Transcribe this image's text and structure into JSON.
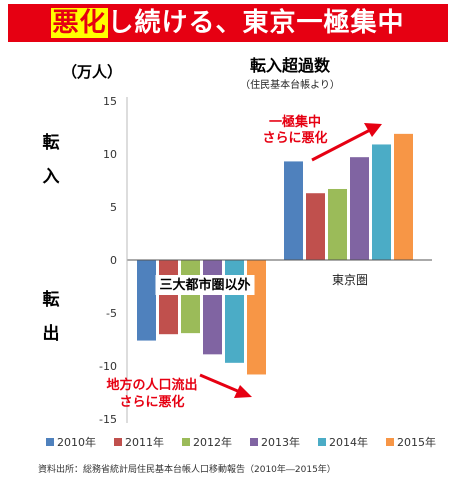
{
  "banner": {
    "highlight": "悪化",
    "rest": "し続ける、東京一極集中",
    "background": "#e60012",
    "highlight_color": "#ffff00"
  },
  "chart_data": {
    "type": "bar",
    "title": "転入超過数",
    "subtitle": "（住民基本台帳より）",
    "unit_label": "（万人）",
    "ylim": [
      -15,
      15
    ],
    "yticks": [
      15,
      10,
      5,
      0,
      -5,
      -10,
      -15
    ],
    "grid": false,
    "side_labels": {
      "in": [
        "転",
        "入"
      ],
      "out": [
        "転",
        "出"
      ]
    },
    "groups": [
      {
        "label": "三大都市圏以外",
        "values": [
          -7.6,
          -7.0,
          -6.9,
          -8.9,
          -9.7,
          -10.8
        ]
      },
      {
        "label": "東京圏",
        "values": [
          9.3,
          6.3,
          6.7,
          9.7,
          10.9,
          11.9
        ]
      }
    ],
    "series": [
      {
        "name": "2010年",
        "color": "#4f81bd"
      },
      {
        "name": "2011年",
        "color": "#c0504d"
      },
      {
        "name": "2012年",
        "color": "#9bbb59"
      },
      {
        "name": "2013年",
        "color": "#8064a2"
      },
      {
        "name": "2014年",
        "color": "#4bacc6"
      },
      {
        "name": "2015年",
        "color": "#f79646"
      }
    ],
    "legend_position": "bottom",
    "annotations": [
      {
        "id": "tokyo",
        "lines": [
          "一極集中",
          "さらに悪化"
        ],
        "color": "#e60012"
      },
      {
        "id": "rural",
        "lines": [
          "地方の人口流出",
          "さらに悪化"
        ],
        "color": "#e60012"
      }
    ],
    "source": "資料出所：総務省統計局住民基本台帳人口移動報告（2010年―2015年）"
  }
}
